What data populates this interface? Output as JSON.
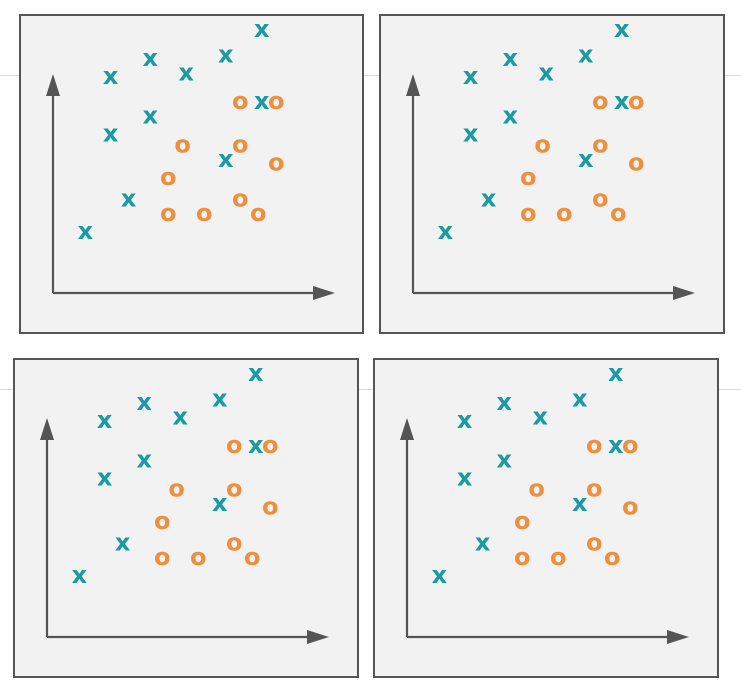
{
  "colors": {
    "x_marker": "#1a9aa3",
    "o_marker": "#ee8f3e",
    "axis": "#555555",
    "panel_bg": "#f2f2f2",
    "panel_border": "#555555"
  },
  "marker_labels": {
    "x": "x",
    "o": "o"
  },
  "points": [
    {
      "cls": "x",
      "x": 0.9,
      "y": 1.7
    },
    {
      "cls": "x",
      "x": 2.1,
      "y": 2.6
    },
    {
      "cls": "x",
      "x": 1.6,
      "y": 4.4
    },
    {
      "cls": "x",
      "x": 1.6,
      "y": 6.0
    },
    {
      "cls": "x",
      "x": 2.7,
      "y": 4.9
    },
    {
      "cls": "x",
      "x": 2.7,
      "y": 6.5
    },
    {
      "cls": "x",
      "x": 3.7,
      "y": 6.1
    },
    {
      "cls": "x",
      "x": 4.8,
      "y": 6.6
    },
    {
      "cls": "x",
      "x": 5.8,
      "y": 7.3
    },
    {
      "cls": "x",
      "x": 5.8,
      "y": 5.3
    },
    {
      "cls": "x",
      "x": 4.8,
      "y": 3.7
    },
    {
      "cls": "o",
      "x": 3.2,
      "y": 3.2
    },
    {
      "cls": "o",
      "x": 3.6,
      "y": 4.1
    },
    {
      "cls": "o",
      "x": 3.2,
      "y": 2.2
    },
    {
      "cls": "o",
      "x": 4.2,
      "y": 2.2
    },
    {
      "cls": "o",
      "x": 5.2,
      "y": 5.3
    },
    {
      "cls": "o",
      "x": 6.2,
      "y": 5.3
    },
    {
      "cls": "o",
      "x": 5.2,
      "y": 4.1
    },
    {
      "cls": "o",
      "x": 6.2,
      "y": 3.6
    },
    {
      "cls": "o",
      "x": 5.2,
      "y": 2.6
    },
    {
      "cls": "o",
      "x": 5.7,
      "y": 2.2
    }
  ],
  "panels": [
    {
      "id": "top-left"
    },
    {
      "id": "top-right"
    },
    {
      "id": "bottom-left"
    },
    {
      "id": "bottom-right"
    }
  ]
}
